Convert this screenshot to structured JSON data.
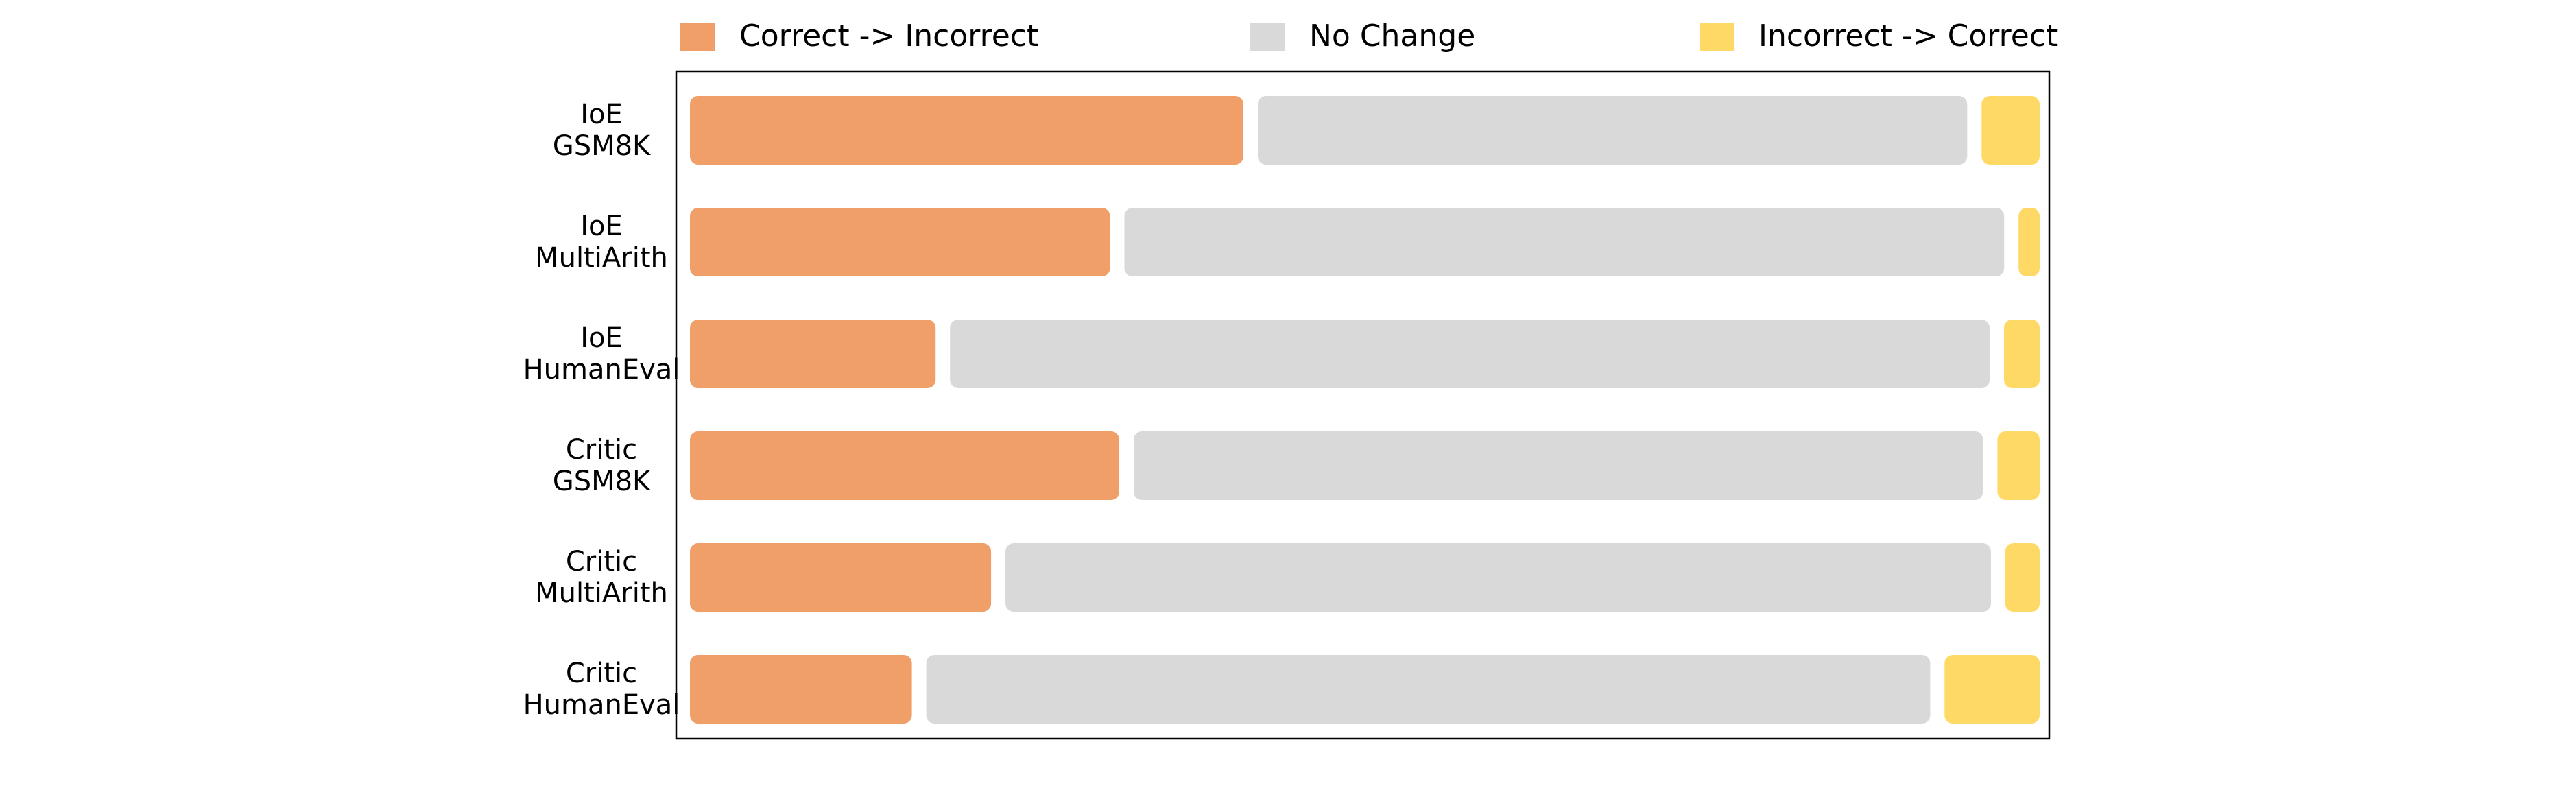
{
  "chart_data": {
    "type": "bar",
    "orientation": "horizontal",
    "stacked": true,
    "normalized": true,
    "legend_position": "top",
    "grid": false,
    "series": [
      {
        "name": "Correct -> Incorrect",
        "color": "#F09F68"
      },
      {
        "name": "No Change",
        "color": "#D9D9D9"
      },
      {
        "name": "Incorrect -> Correct",
        "color": "#FFD966"
      }
    ],
    "rows": [
      {
        "label_line1": "IoE",
        "label_line2": "GSM8K",
        "values": [
          41.9,
          53.7,
          4.4
        ]
      },
      {
        "label_line1": "IoE",
        "label_line2": "MultiArith",
        "values": [
          31.8,
          66.6,
          1.6
        ]
      },
      {
        "label_line1": "IoE",
        "label_line2": "HumanEval",
        "values": [
          18.6,
          78.7,
          2.7
        ]
      },
      {
        "label_line1": "Critic",
        "label_line2": "GSM8K",
        "values": [
          32.5,
          64.3,
          3.2
        ]
      },
      {
        "label_line1": "Critic",
        "label_line2": "MultiArith",
        "values": [
          22.8,
          74.6,
          2.6
        ]
      },
      {
        "label_line1": "Critic",
        "label_line2": "HumanEval",
        "values": [
          16.8,
          76.0,
          7.2
        ]
      }
    ]
  }
}
